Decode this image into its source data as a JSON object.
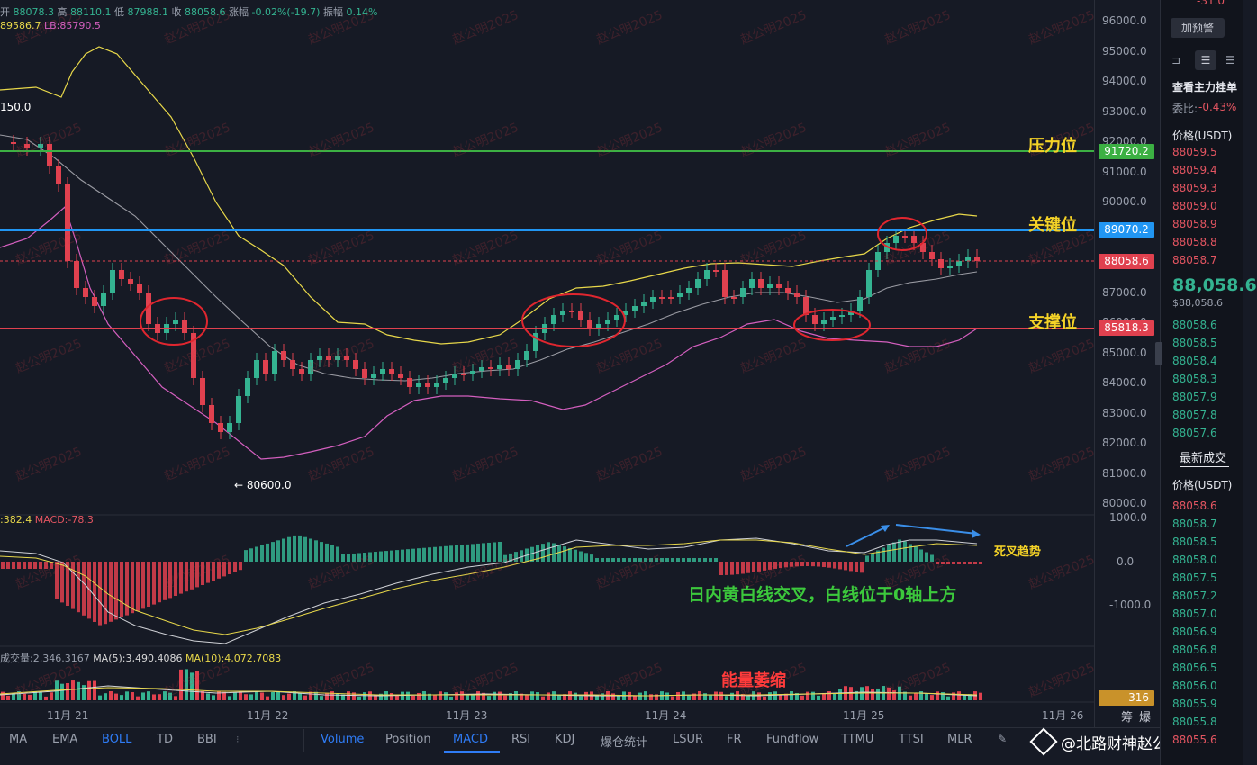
{
  "header": {
    "ohlc": [
      {
        "label": "开",
        "value": "88078.3"
      },
      {
        "label": "高",
        "value": "88110.1"
      },
      {
        "label": "低",
        "value": "87988.1"
      },
      {
        "label": "收",
        "value": "88058.6"
      },
      {
        "label": "涨幅",
        "value": "-0.02%(-19.7)"
      },
      {
        "label": "振幅",
        "value": "0.14%"
      }
    ],
    "boll_ub": "89586.7",
    "boll_lb": "LB:85790.5",
    "high_marker": "150.0",
    "low_marker": "← 80600.0"
  },
  "price_axis": {
    "ticks": [
      "96000.0",
      "95000.0",
      "94000.0",
      "93000.0",
      "92000.0",
      "91000.0",
      "90000.0",
      "89000.0",
      "88000.0",
      "87000.0",
      "86000.0",
      "85000.0",
      "84000.0",
      "83000.0",
      "82000.0",
      "81000.0",
      "80000.0"
    ],
    "macd_ticks": [
      "1000.0",
      "0.0",
      "-1000.0"
    ],
    "tags": [
      {
        "value": "91720.2",
        "color": "#3cb043"
      },
      {
        "value": "89070.2",
        "color": "#2196f3"
      },
      {
        "value": "88058.6",
        "color": "#e0414f"
      },
      {
        "value": "85818.3",
        "color": "#e0414f"
      }
    ],
    "volume_tag": "316"
  },
  "levels": {
    "resistance": "压力位",
    "key": "关键位",
    "support": "支撑位"
  },
  "macd": {
    "info_a": ":382.4",
    "info_b": "MACD:-78.3",
    "trend_label": "死叉趋势",
    "note": "日内黄白线交叉，白线位于0轴上方"
  },
  "volume": {
    "info_a": "成交量:2,346.3167",
    "info_b": "MA(5):3,490.4086",
    "info_c": "MA(10):4,072.7083",
    "note": "能量萎缩"
  },
  "x_axis": {
    "labels": [
      "11月 21",
      "11月 22",
      "11月 23",
      "11月 24",
      "11月 25",
      "11月 26"
    ],
    "right": [
      "筹",
      "爆"
    ]
  },
  "indicators_left": [
    "MA",
    "EMA",
    "BOLL",
    "TD",
    "BBI"
  ],
  "indicators_right": [
    "Volume",
    "Position",
    "MACD",
    "RSI",
    "KDJ",
    "爆仓统计",
    "LSUR",
    "FR",
    "Fundflow",
    "TTMU",
    "TTSI",
    "MLR"
  ],
  "watermark": "赵公明2025",
  "signature": "@北路财神赵公明",
  "side_panel": {
    "top_value": "-31.0",
    "alert_button": "加预警",
    "view_orders": "查看主力挂单",
    "ratio_label": "委比:",
    "ratio_value": "-0.43%",
    "price_header": "价格(USDT)",
    "asks": [
      "88059.5",
      "88059.4",
      "88059.3",
      "88059.0",
      "88058.9",
      "88058.8",
      "88058.7"
    ],
    "last_price": "88,058.6",
    "last_price_sub": "$88,058.6",
    "bids": [
      "88058.6",
      "88058.5",
      "88058.4",
      "88058.3",
      "88057.9",
      "88057.8",
      "88057.6"
    ],
    "trades_header": "最新成交",
    "trades_price_header": "价格(USDT)",
    "trades": [
      {
        "price": "88058.6",
        "side": "red"
      },
      {
        "price": "88058.7",
        "side": "green"
      },
      {
        "price": "88058.5",
        "side": "green"
      },
      {
        "price": "88058.0",
        "side": "green"
      },
      {
        "price": "88057.5",
        "side": "green"
      },
      {
        "price": "88057.2",
        "side": "green"
      },
      {
        "price": "88057.0",
        "side": "green"
      },
      {
        "price": "88056.9",
        "side": "green"
      },
      {
        "price": "88056.8",
        "side": "green"
      },
      {
        "price": "88056.5",
        "side": "green"
      },
      {
        "price": "88056.0",
        "side": "green"
      },
      {
        "price": "88055.9",
        "side": "green"
      },
      {
        "price": "88055.8",
        "side": "green"
      },
      {
        "price": "88055.6",
        "side": "red"
      }
    ]
  },
  "colors": {
    "up": "#34b391",
    "down": "#e0414f",
    "resistance": "#3cb043",
    "key": "#2196f3",
    "support": "#e0414f",
    "label_yellow": "#f5d327",
    "note_green": "#3cc83c",
    "note_red": "#ff3b3b"
  }
}
